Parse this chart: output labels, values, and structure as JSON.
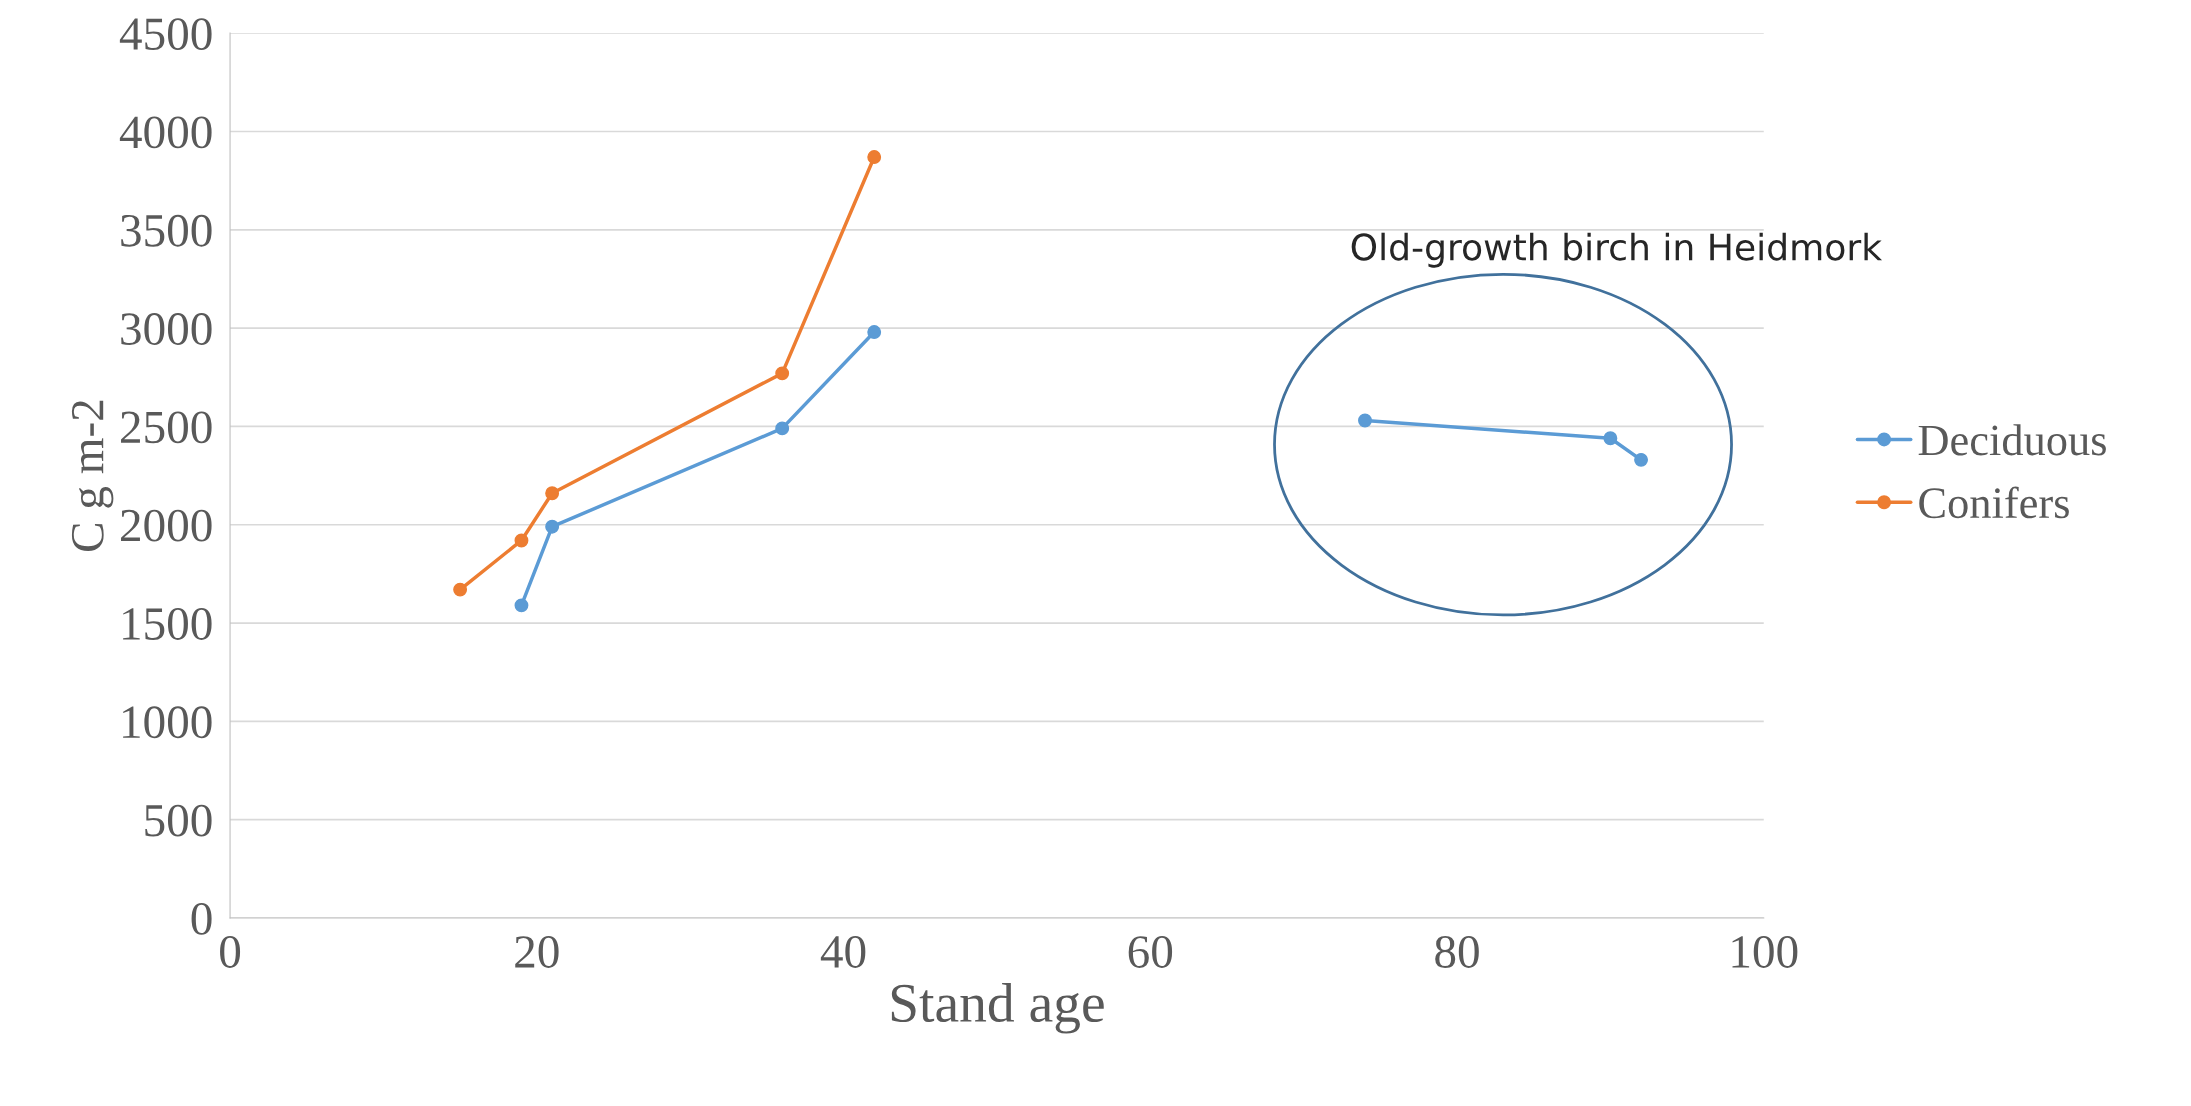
{
  "chart_data": {
    "type": "line",
    "xlabel": "Stand age",
    "ylabel": "C g m-2",
    "annotations": [
      "Old-growth birch in Heidmork"
    ],
    "series": [
      {
        "name": "Deciduous",
        "color": "#5b9bd5",
        "x": [
          19,
          21,
          36,
          42,
          null,
          74,
          90,
          92
        ],
        "values": [
          1590,
          1990,
          2490,
          2980,
          null,
          2530,
          2440,
          2330
        ]
      },
      {
        "name": "Conifers",
        "color": "#ed7d31",
        "x": [
          15,
          19,
          21,
          36,
          42
        ],
        "values": [
          1670,
          1920,
          2160,
          2770,
          3870
        ]
      }
    ],
    "xlim": [
      0,
      100
    ],
    "xticks": [
      0,
      20,
      40,
      60,
      80,
      100
    ],
    "ylim": [
      0,
      4500
    ],
    "yticks": [
      0,
      500,
      1000,
      1500,
      2000,
      2500,
      3000,
      3500,
      4000,
      4500
    ],
    "grid": "y",
    "legend": "right",
    "marker": "circle",
    "line_style": "solid"
  }
}
